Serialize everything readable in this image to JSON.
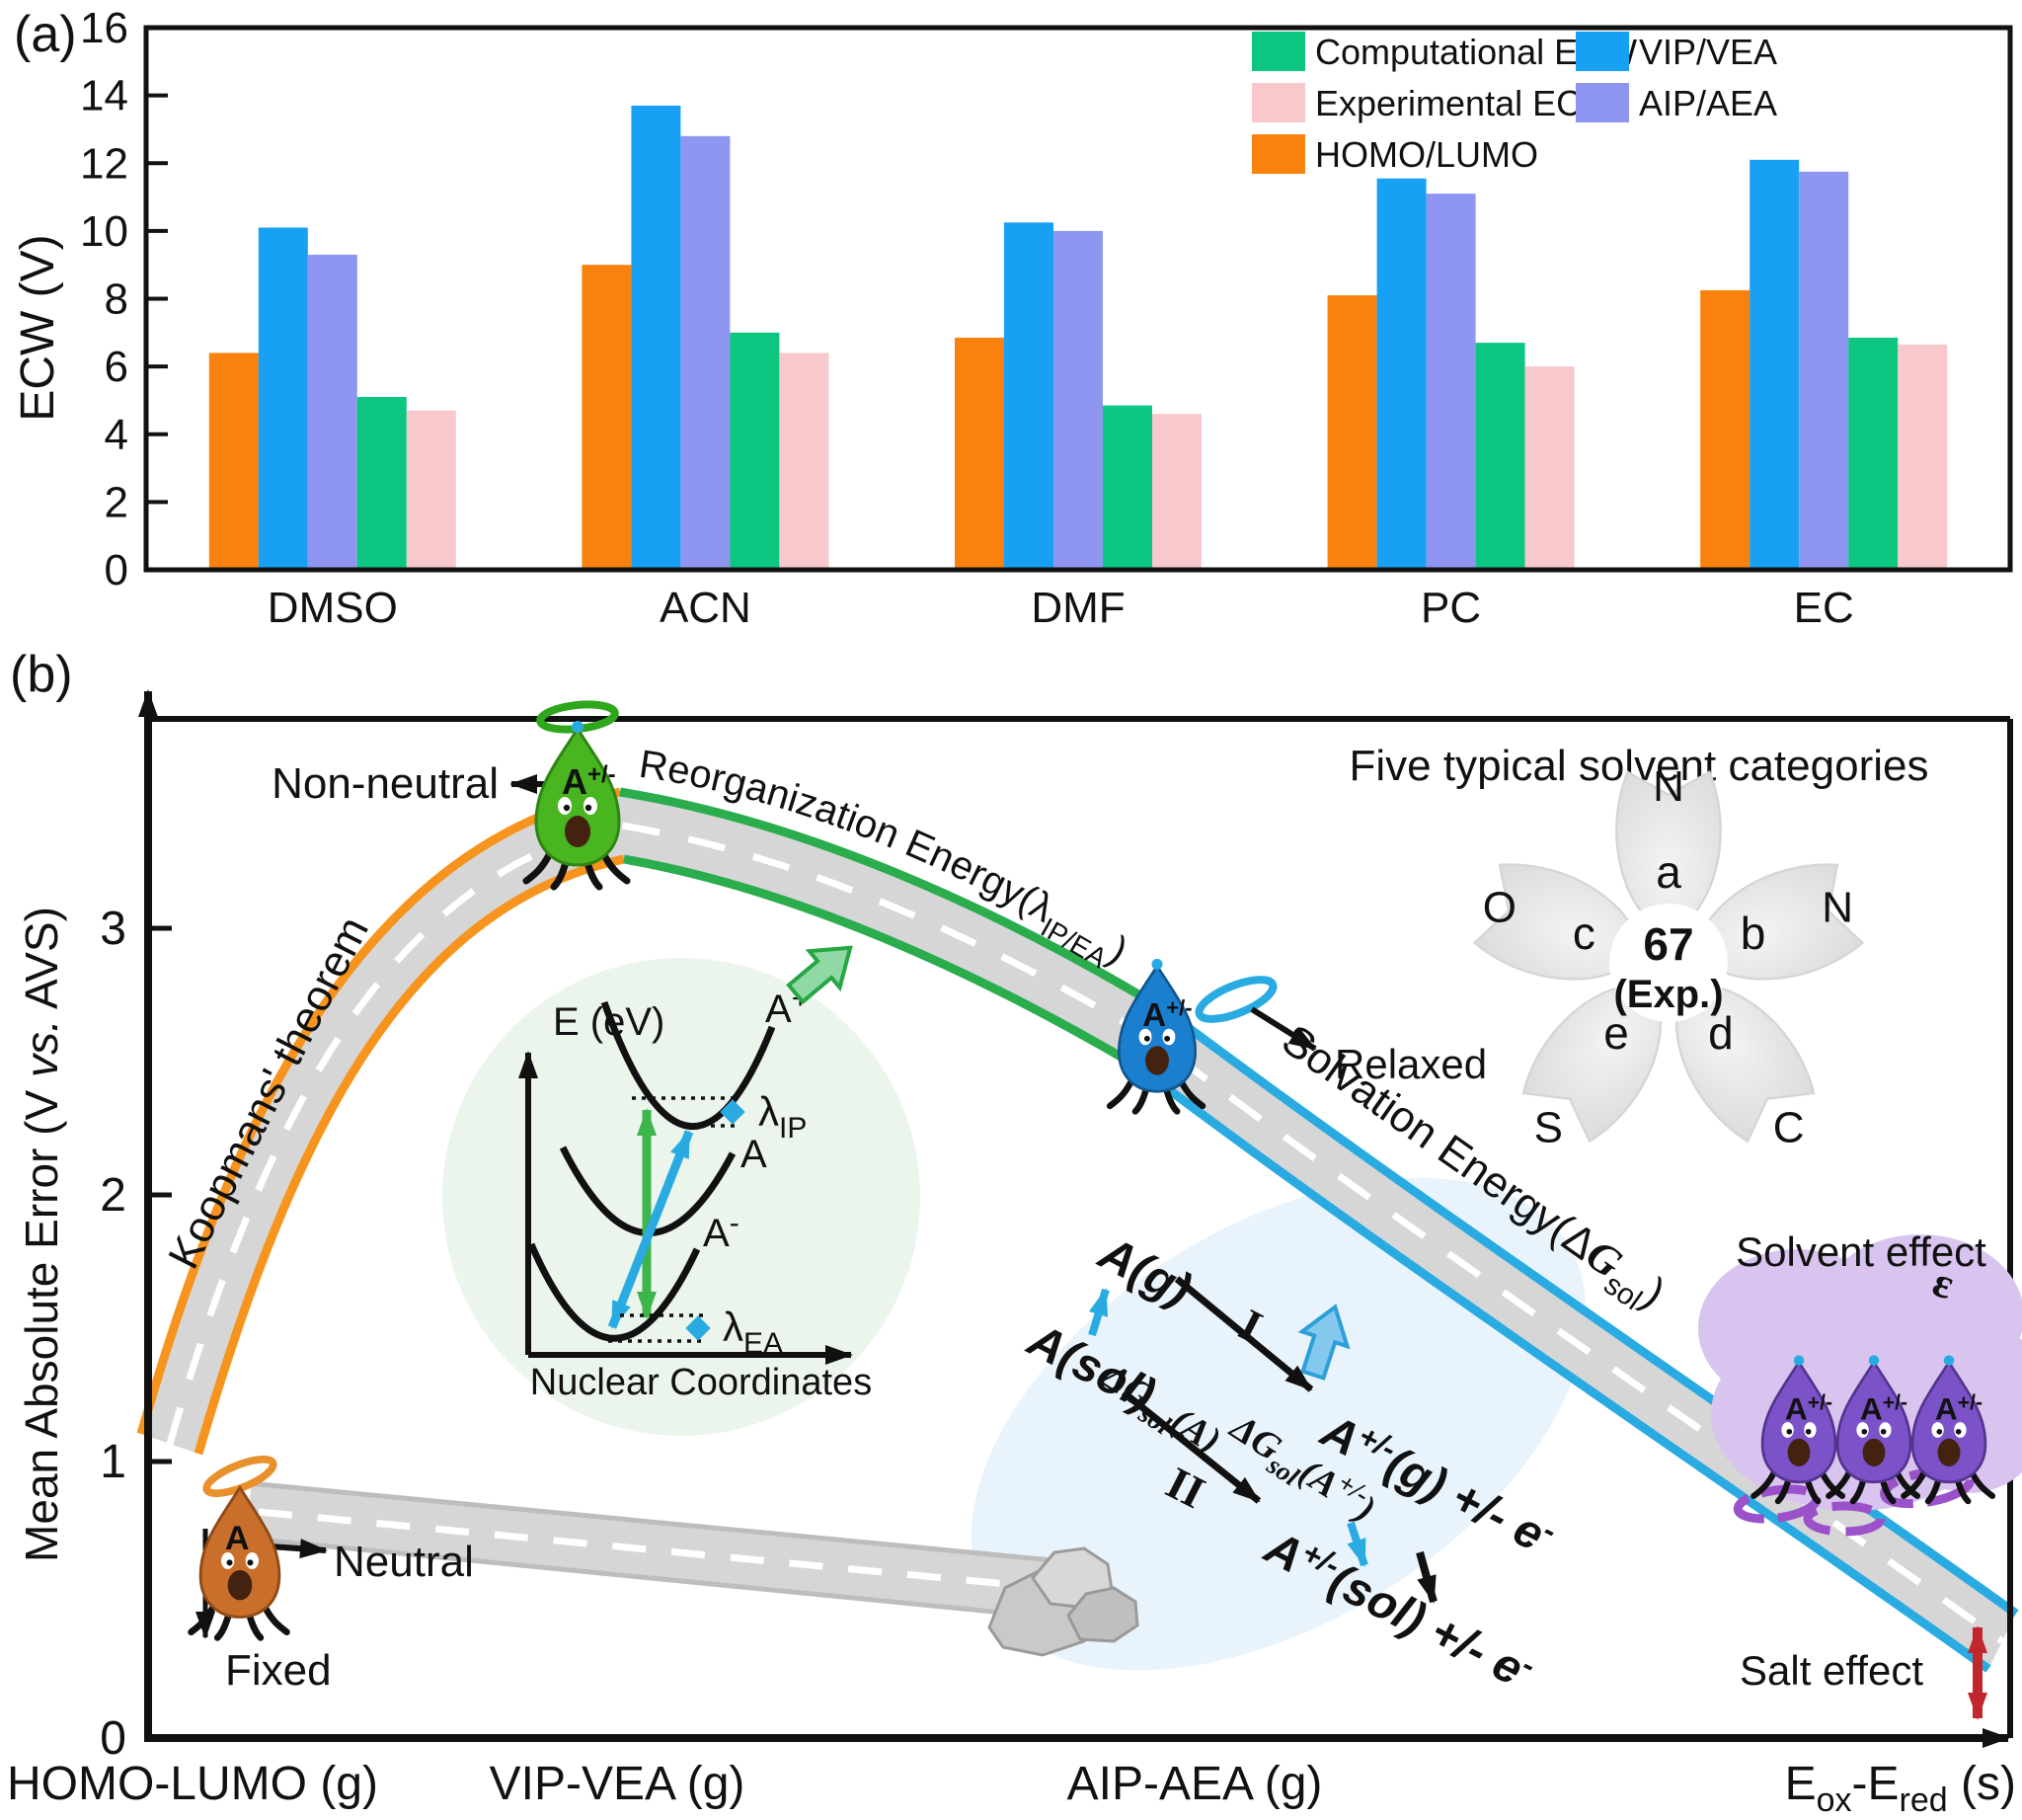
{
  "panel_a": {
    "label": "(a)",
    "ylabel": "ECW (V)",
    "yticks": [
      0,
      2,
      4,
      6,
      8,
      10,
      12,
      14,
      16
    ],
    "ylim": [
      0,
      16
    ],
    "chart_data": {
      "type": "bar",
      "categories": [
        "DMSO",
        "ACN",
        "DMF",
        "PC",
        "EC"
      ],
      "series": [
        {
          "name": "HOMO/LUMO",
          "color": "#F8820D",
          "values": [
            6.4,
            9.0,
            6.85,
            8.1,
            8.25
          ]
        },
        {
          "name": "VIP/VEA",
          "color": "#18A0F4",
          "values": [
            10.1,
            13.7,
            10.25,
            11.55,
            12.1
          ]
        },
        {
          "name": "AIP/AEA",
          "color": "#8E96F2",
          "values": [
            9.3,
            12.8,
            10.0,
            11.1,
            11.75
          ]
        },
        {
          "name": "Computational ECW",
          "color": "#0CC681",
          "values": [
            5.1,
            7.0,
            4.85,
            6.7,
            6.85
          ]
        },
        {
          "name": "Experimental ECW",
          "color": "#F8C8CD",
          "values": [
            4.7,
            6.4,
            4.6,
            6.0,
            6.65
          ]
        }
      ],
      "xlabel": "",
      "ylabel": "ECW (V)",
      "legend_position": "top-right",
      "grid": false
    },
    "legend_order": [
      3,
      4,
      0,
      1,
      2
    ]
  },
  "panel_b": {
    "label": "(b)",
    "ylabel_pre": "Mean Absolute Error (V ",
    "ylabel_italic": "vs.",
    "ylabel_post": " AVS)",
    "yticks": [
      0,
      1,
      2,
      3
    ],
    "road": {
      "koopmans": "Koopmans' theorem",
      "reorg_pre": "Reorganization Energy(λ",
      "reorg_sub": "IP/EA",
      "reorg_post": ")",
      "solv_pre": "Solvation Energy(Δ",
      "solv_g": "G",
      "solv_sub": "sol",
      "solv_post": ")"
    },
    "annotations": {
      "non_neutral": "Non-neutral",
      "neutral": "Neutral",
      "fixed": "Fixed",
      "relaxed": "Relaxed",
      "solvent_effect": "Solvent effect",
      "salt_effect": "Salt effect",
      "epsilon": "ε"
    },
    "characters": {
      "fixed_label": "A",
      "fixed_sup": "",
      "ion_label": "A",
      "ion_sup": "+/-"
    },
    "inset": {
      "ylabel": "E (eV)",
      "xlabel": "Nuclear Coordinates",
      "curve_plus_main": "A",
      "curve_plus_sup": "+",
      "curve_neutral": "A",
      "curve_minus_main": "A",
      "curve_minus_sup": "-",
      "lambda": "λ",
      "ip": "IP",
      "ea": "EA"
    },
    "cycle": {
      "a_g": "A(g)",
      "a_sol": "A(sol)",
      "roman_i": "I",
      "roman_ii": "II",
      "dg": "ΔG",
      "dg_sub": "sol",
      "dg_a_post": "(A)",
      "dg_ion_p1": "(A",
      "dg_ion_sup": "+/-",
      "dg_ion_p2": ")",
      "ion_main": "A",
      "ion_sup": "+/-",
      "ion_g_rest": "(g) +/- e",
      "ion_sol_rest": "(sol) +/- e",
      "e_sup": "-"
    },
    "flower": {
      "title": "Five typical solvent categories",
      "center_value": "67",
      "center_sub": "(Exp.)",
      "petals": [
        {
          "letter": "a",
          "outer": "N"
        },
        {
          "letter": "b",
          "outer": "N"
        },
        {
          "letter": "d",
          "outer": "C"
        },
        {
          "letter": "e",
          "outer": "S"
        },
        {
          "letter": "c",
          "outer": "O"
        }
      ]
    },
    "bottom_labels": {
      "homo": {
        "text": "HOMO-LUMO (g)",
        "color": "#F7941D"
      },
      "vip": {
        "text": "VIP-VEA (g)",
        "color": "#22B14C"
      },
      "aip": {
        "text": "AIP-AEA (g)",
        "color": "#18A0F4"
      },
      "eox": {
        "e1": "E",
        "s1": "ox",
        "mid": "-E",
        "s2": "red",
        "post": " (s)",
        "color": "#A05BD6"
      }
    },
    "colors": {
      "road_gray": "#D6D6D6",
      "edge_orange": "#F7941D",
      "edge_green": "#2BAD4E",
      "edge_blue": "#29ABE2",
      "text_green": "#1EA64A",
      "text_blue": "#29ABE2",
      "salt_red": "#C1272D",
      "purple": "#A05BD6"
    }
  }
}
